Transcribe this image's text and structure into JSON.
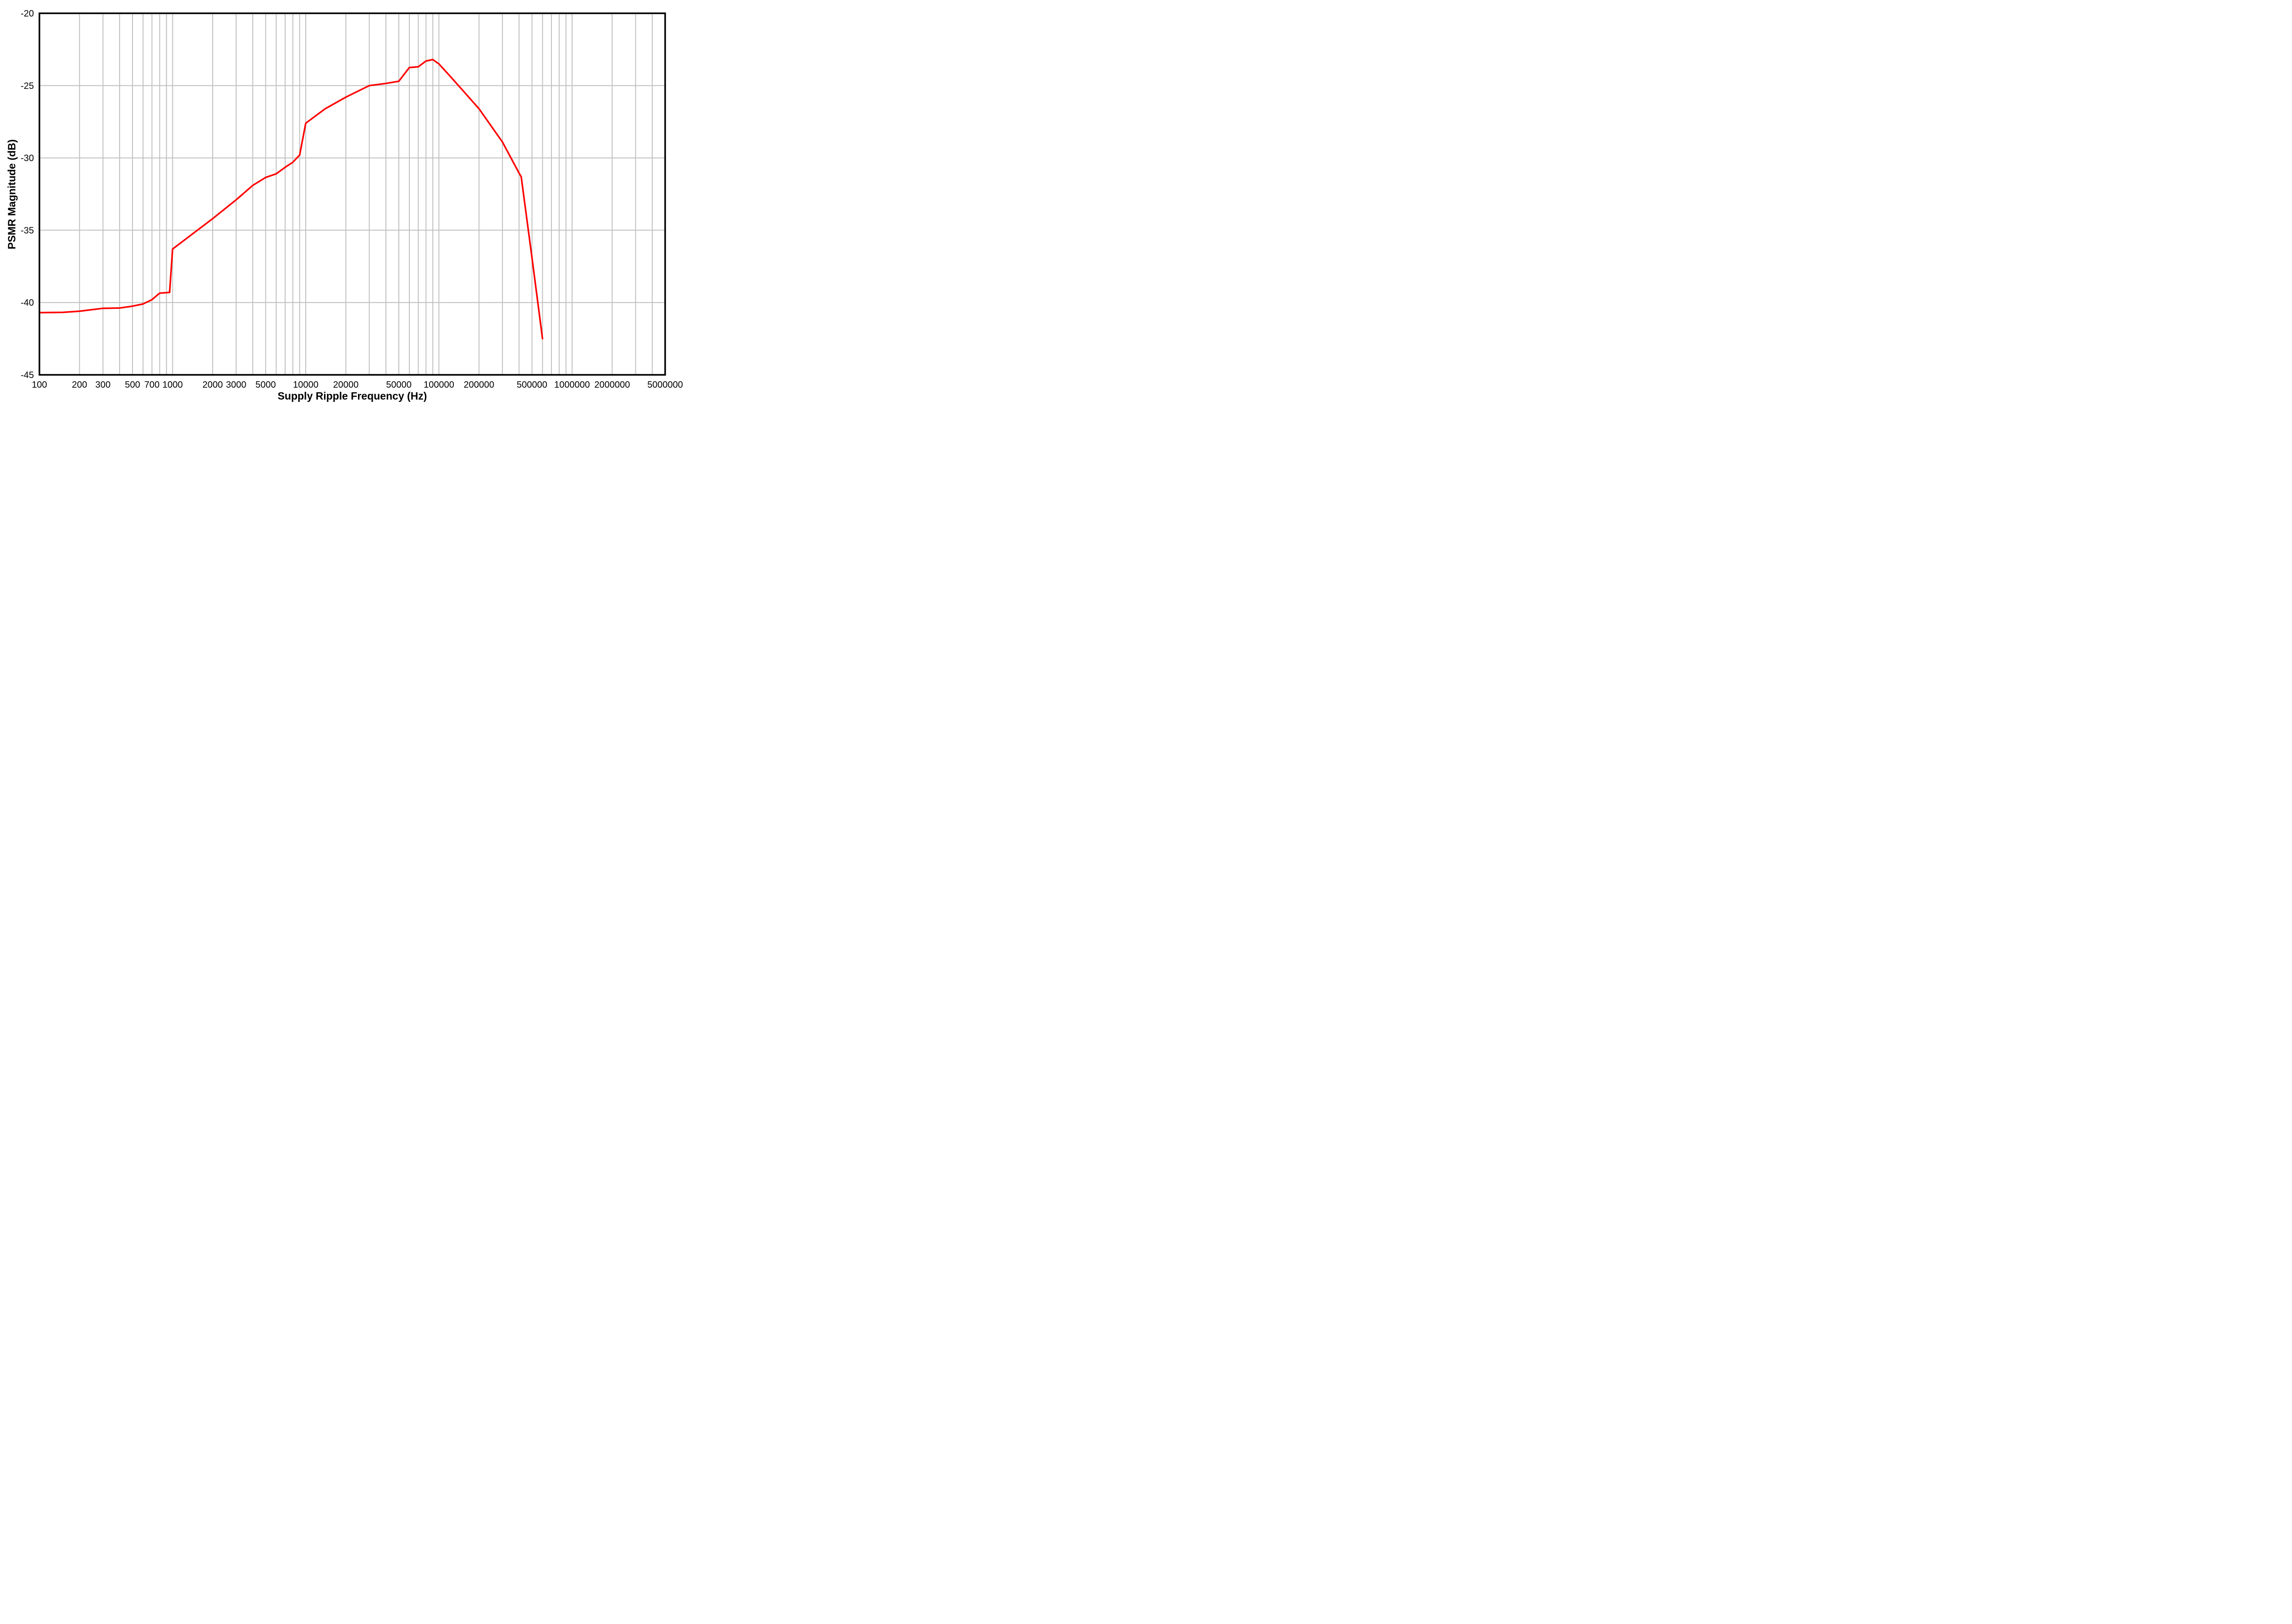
{
  "figure": {
    "background_color": "#ffffff",
    "frame_color": "#000000",
    "grid_color": "#c0c0c0",
    "curve_color": "#ff0000"
  },
  "chart_data": {
    "type": "line",
    "title": "",
    "xlabel": "Supply Ripple Frequency (Hz)",
    "ylabel": "PSMR Magnitude (dB)",
    "x_scale": "log",
    "xlim": [
      100,
      5000000
    ],
    "ylim": [
      -45,
      -20
    ],
    "grid": "vertical log-minor gridlines + horizontal major gridlines, light gray",
    "legend": "none",
    "x_tick_values": [
      100,
      200,
      300,
      500,
      700,
      1000,
      2000,
      3000,
      5000,
      10000,
      20000,
      50000,
      100000,
      200000,
      500000,
      1000000,
      2000000,
      5000000
    ],
    "x_tick_labels": [
      "100",
      "200",
      "300",
      "500",
      "700",
      "1000",
      "2000",
      "3000",
      "5000",
      "10000",
      "20000",
      "50000",
      "100000",
      "200000",
      "500000",
      "1000000",
      "2000000",
      "5000000"
    ],
    "y_tick_values": [
      -20,
      -25,
      -30,
      -35,
      -40,
      -45
    ],
    "y_tick_labels": [
      "-20",
      "-25",
      "-30",
      "-35",
      "-40",
      "-45"
    ],
    "series": [
      {
        "name": "PSMR",
        "color": "#ff0000",
        "points": [
          [
            100,
            -40.7
          ],
          [
            150,
            -40.68
          ],
          [
            200,
            -40.6
          ],
          [
            300,
            -40.4
          ],
          [
            400,
            -40.38
          ],
          [
            500,
            -40.25
          ],
          [
            600,
            -40.1
          ],
          [
            700,
            -39.8
          ],
          [
            800,
            -39.35
          ],
          [
            950,
            -39.3
          ],
          [
            1000,
            -36.3
          ],
          [
            2000,
            -34.2
          ],
          [
            3000,
            -32.9
          ],
          [
            4000,
            -31.9
          ],
          [
            5000,
            -31.35
          ],
          [
            6000,
            -31.1
          ],
          [
            7000,
            -30.65
          ],
          [
            8000,
            -30.3
          ],
          [
            9000,
            -29.8
          ],
          [
            10000,
            -27.6
          ],
          [
            14000,
            -26.6
          ],
          [
            20000,
            -25.8
          ],
          [
            30000,
            -25.0
          ],
          [
            40000,
            -24.85
          ],
          [
            50000,
            -24.7
          ],
          [
            60000,
            -23.75
          ],
          [
            70000,
            -23.7
          ],
          [
            80000,
            -23.3
          ],
          [
            90000,
            -23.2
          ],
          [
            100000,
            -23.5
          ],
          [
            120000,
            -24.3
          ],
          [
            150000,
            -25.3
          ],
          [
            200000,
            -26.6
          ],
          [
            300000,
            -28.9
          ],
          [
            400000,
            -31.05
          ],
          [
            415000,
            -31.3
          ],
          [
            500000,
            -36.9
          ],
          [
            600000,
            -42.5
          ]
        ]
      }
    ]
  }
}
